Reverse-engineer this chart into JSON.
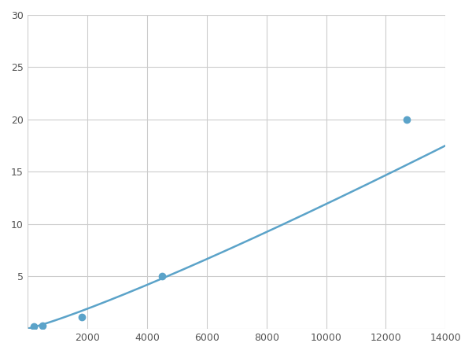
{
  "x_data": [
    200,
    500,
    1800,
    4500,
    12700
  ],
  "y_data": [
    0.2,
    0.3,
    1.1,
    5.0,
    20.0
  ],
  "line_color": "#5BA3C9",
  "marker_color": "#5BA3C9",
  "marker_size": 6,
  "line_width": 1.8,
  "xlim": [
    0,
    14000
  ],
  "ylim": [
    0,
    30
  ],
  "xticks": [
    0,
    2000,
    4000,
    6000,
    8000,
    10000,
    12000,
    14000
  ],
  "yticks": [
    0,
    5,
    10,
    15,
    20,
    25,
    30
  ],
  "grid_color": "#CCCCCC",
  "background_color": "#FFFFFF",
  "figure_bg": "#FFFFFF"
}
